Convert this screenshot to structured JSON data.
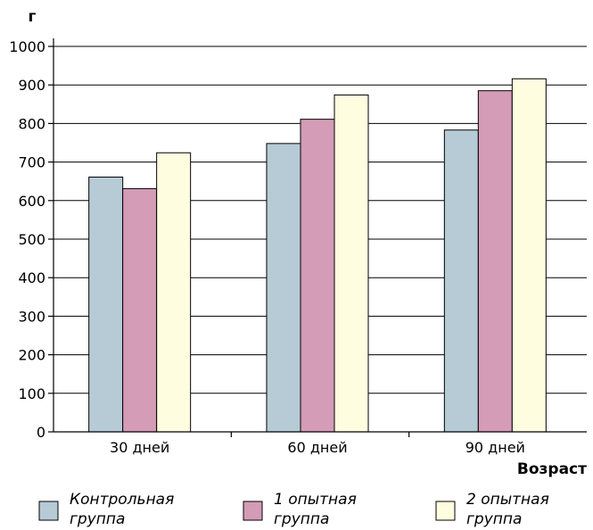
{
  "chart_data": {
    "type": "bar",
    "ylabel": "г",
    "xlabel": "Возраст",
    "ylim": [
      0,
      1000
    ],
    "yticks": [
      0,
      100,
      200,
      300,
      400,
      500,
      600,
      700,
      800,
      900,
      1000
    ],
    "grid": true,
    "legend_position": "bottom",
    "categories": [
      "30 дней",
      "60 дней",
      "90 дней"
    ],
    "series": [
      {
        "name": "Контрольная группа",
        "legend_lines": [
          "Контрольная",
          "группа"
        ],
        "color": "#b6cbd6",
        "values": [
          661,
          748,
          783
        ]
      },
      {
        "name": "1 опытная группа",
        "legend_lines": [
          "1 опытная",
          "группа"
        ],
        "color": "#d49cb6",
        "values": [
          631,
          811,
          885
        ]
      },
      {
        "name": "2 опытная группа",
        "legend_lines": [
          "2 опытная",
          "группа"
        ],
        "color": "#fffde0",
        "values": [
          724,
          874,
          916
        ]
      }
    ]
  }
}
